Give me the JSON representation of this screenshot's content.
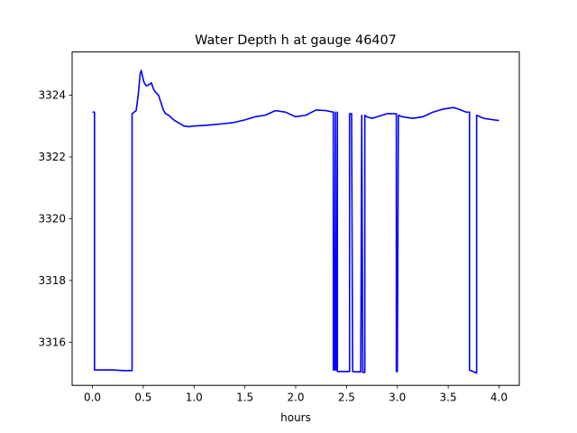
{
  "chart_data": {
    "type": "line",
    "title": "Water Depth h at gauge 46407",
    "xlabel": "hours",
    "ylabel": "",
    "xlim": [
      -0.2,
      4.2
    ],
    "ylim": [
      3314.6,
      3325.4
    ],
    "xticks": [
      0.0,
      0.5,
      1.0,
      1.5,
      2.0,
      2.5,
      3.0,
      3.5,
      4.0
    ],
    "xtick_labels": [
      "0.0",
      "0.5",
      "1.0",
      "1.5",
      "2.0",
      "2.5",
      "3.0",
      "3.5",
      "4.0"
    ],
    "yticks": [
      3316,
      3318,
      3320,
      3322,
      3324
    ],
    "ytick_labels": [
      "3316",
      "3318",
      "3320",
      "3322",
      "3324"
    ],
    "grid": false,
    "series": [
      {
        "color": "#0000ff",
        "x": [
          0.0,
          0.02,
          0.02,
          0.2,
          0.3,
          0.39,
          0.39,
          0.43,
          0.45,
          0.47,
          0.48,
          0.5,
          0.51,
          0.53,
          0.56,
          0.58,
          0.6,
          0.62,
          0.65,
          0.68,
          0.7,
          0.72,
          0.75,
          0.8,
          0.85,
          0.9,
          0.95,
          1.0,
          1.1,
          1.2,
          1.3,
          1.4,
          1.5,
          1.6,
          1.7,
          1.8,
          1.9,
          2.0,
          2.1,
          2.2,
          2.3,
          2.37,
          2.37,
          2.38,
          2.39,
          2.39,
          2.4,
          2.41,
          2.41,
          2.53,
          2.53,
          2.55,
          2.56,
          2.56,
          2.58,
          2.6,
          2.64,
          2.65,
          2.65,
          2.66,
          2.68,
          2.68,
          2.7,
          2.75,
          2.8,
          2.9,
          2.99,
          2.99,
          3.0,
          3.01,
          3.01,
          3.05,
          3.15,
          3.25,
          3.35,
          3.45,
          3.55,
          3.6,
          3.68,
          3.71,
          3.71,
          3.78,
          3.78,
          3.85,
          3.95,
          4.0
        ],
        "y": [
          3323.45,
          3323.45,
          3315.1,
          3315.1,
          3315.08,
          3315.08,
          3323.4,
          3323.5,
          3324.0,
          3324.7,
          3324.8,
          3324.5,
          3324.4,
          3324.3,
          3324.35,
          3324.4,
          3324.2,
          3324.1,
          3324.0,
          3323.7,
          3323.5,
          3323.4,
          3323.35,
          3323.2,
          3323.1,
          3323.0,
          3322.98,
          3323.0,
          3323.02,
          3323.05,
          3323.08,
          3323.12,
          3323.2,
          3323.3,
          3323.35,
          3323.5,
          3323.45,
          3323.3,
          3323.35,
          3323.52,
          3323.5,
          3323.45,
          3315.1,
          3315.1,
          3323.45,
          3315.1,
          3315.1,
          3323.45,
          3315.05,
          3315.05,
          3323.4,
          3323.4,
          3315.05,
          3315.05,
          3315.04,
          3315.04,
          3315.04,
          3323.35,
          3323.35,
          3315.02,
          3315.02,
          3323.35,
          3323.3,
          3323.25,
          3323.3,
          3323.4,
          3323.4,
          3315.05,
          3315.05,
          3323.35,
          3323.35,
          3323.3,
          3323.25,
          3323.3,
          3323.45,
          3323.55,
          3323.6,
          3323.55,
          3323.45,
          3323.45,
          3315.1,
          3315.0,
          3323.35,
          3323.25,
          3323.2,
          3323.18
        ]
      }
    ]
  }
}
